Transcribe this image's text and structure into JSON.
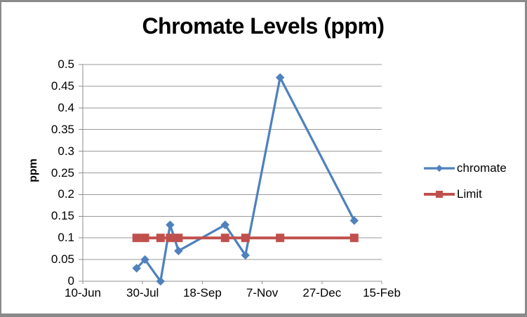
{
  "frame": {
    "background": "#ffffff",
    "border_color": "#8a8a8a"
  },
  "chart_data": {
    "type": "line",
    "title": "Chromate Levels (ppm)",
    "xlabel": "",
    "ylabel": "ppm",
    "ylim": [
      0,
      0.5
    ],
    "ytick_interval": 0.05,
    "ytick_labels_top_to_bottom": [
      "0.5",
      "0.45",
      "0.4",
      "0.35",
      "0.3",
      "0.25",
      "0.2",
      "0.15",
      "0.1",
      "0.05",
      "0"
    ],
    "xtick_labels": [
      "10-Jun",
      "30-Jul",
      "18-Sep",
      "7-Nov",
      "27-Dec",
      "15-Feb"
    ],
    "xtick_interval_days": 50,
    "xlim_days": [
      0,
      250
    ],
    "grid": true,
    "legend_position": "right",
    "axis_color": "#8c8c8c",
    "gridline_color": "#9a9a9a",
    "x_days": [
      45,
      52,
      65,
      73,
      80,
      119,
      136,
      165,
      227
    ],
    "series": [
      {
        "name": "chromate",
        "color": "#4f81bd",
        "marker": "diamond",
        "line_width": 3.25,
        "values": [
          0.03,
          0.05,
          0,
          0.13,
          0.07,
          0.13,
          0.06,
          0.47,
          0.14
        ]
      },
      {
        "name": "Limit",
        "color": "#c0504d",
        "marker": "square",
        "line_width": 4,
        "values": [
          0.1,
          0.1,
          0.1,
          0.1,
          0.1,
          0.1,
          0.1,
          0.1,
          0.1
        ]
      }
    ]
  }
}
